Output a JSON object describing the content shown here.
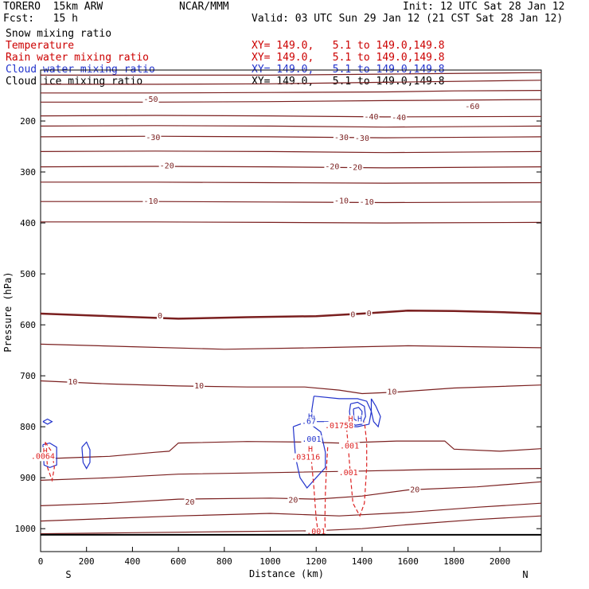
{
  "header": {
    "model": "TORERO  15km ARW",
    "center": "NCAR/MMM",
    "init": "Init: 12 UTC Sat 28 Jan 12",
    "fcst": "Fcst:   15 h",
    "valid": "Valid: 03 UTC Sun 29 Jan 12 (21 CST Sat 28 Jan 12)"
  },
  "fields": [
    {
      "name": "Snow mixing ratio",
      "xy": "",
      "color": "#000000"
    },
    {
      "name": "Temperature",
      "xy": "XY= 149.0,   5.1 to 149.0,149.8",
      "color": "#cc0000"
    },
    {
      "name": "Rain water mixing ratio",
      "xy": "XY= 149.0,   5.1 to 149.0,149.8",
      "color": "#cc0000"
    },
    {
      "name": "Cloud water mixing ratio",
      "xy": "XY= 149.0,   5.1 to 149.0,149.8",
      "color": "#2233cc"
    },
    {
      "name": "Cloud ice mixing ratio",
      "xy": "XY= 149.0,   5.1 to 149.0,149.8",
      "color": "#000000"
    }
  ],
  "chart_data": {
    "type": "line",
    "xlabel": "Distance (km)",
    "ylabel": "Pressure (hPa)",
    "xlim": [
      0,
      2180
    ],
    "ylim": [
      1045,
      100
    ],
    "x_ticks": [
      0,
      200,
      400,
      600,
      800,
      1000,
      1200,
      1400,
      1600,
      1800,
      2000
    ],
    "y_ticks": [
      200,
      300,
      400,
      500,
      600,
      700,
      800,
      900,
      1000
    ],
    "axis_end_labels": {
      "left": "S",
      "right": "N"
    },
    "colors": {
      "temperature": "#7a1f1f",
      "rain": "#dd2222",
      "cloud_water": "#2233cc",
      "label_temp": "#7a1f1f"
    },
    "temperature_isotherms": [
      {
        "level": -60,
        "pts": [
          [
            0,
            110
          ],
          [
            500,
            110
          ],
          [
            1000,
            110
          ],
          [
            1500,
            108
          ],
          [
            2180,
            105
          ]
        ]
      },
      {
        "level": -55,
        "pts": [
          [
            0,
            128
          ],
          [
            500,
            128
          ],
          [
            1000,
            127
          ],
          [
            1500,
            124
          ],
          [
            2180,
            120
          ]
        ]
      },
      {
        "level": -50,
        "pts": [
          [
            0,
            145
          ],
          [
            500,
            145
          ],
          [
            1000,
            144
          ],
          [
            1500,
            143
          ],
          [
            1800,
            141
          ],
          [
            2180,
            140
          ]
        ]
      },
      {
        "level": -45,
        "pts": [
          [
            0,
            163
          ],
          [
            500,
            163
          ],
          [
            1000,
            162
          ],
          [
            1500,
            160
          ],
          [
            2180,
            158
          ]
        ]
      },
      {
        "level": -40,
        "pts": [
          [
            0,
            190
          ],
          [
            500,
            189
          ],
          [
            1000,
            190
          ],
          [
            1500,
            192
          ],
          [
            2180,
            191
          ]
        ]
      },
      {
        "level": -35,
        "pts": [
          [
            0,
            210
          ],
          [
            500,
            209
          ],
          [
            1000,
            210
          ],
          [
            1500,
            212
          ],
          [
            2180,
            210
          ]
        ]
      },
      {
        "level": -30,
        "pts": [
          [
            0,
            231
          ],
          [
            500,
            230
          ],
          [
            1000,
            231
          ],
          [
            1500,
            233
          ],
          [
            2180,
            231
          ]
        ]
      },
      {
        "level": -25,
        "pts": [
          [
            0,
            260
          ],
          [
            500,
            259
          ],
          [
            1000,
            260
          ],
          [
            1500,
            262
          ],
          [
            2180,
            260
          ]
        ]
      },
      {
        "level": -20,
        "pts": [
          [
            0,
            290
          ],
          [
            500,
            289
          ],
          [
            1000,
            290
          ],
          [
            1500,
            292
          ],
          [
            2180,
            290
          ]
        ]
      },
      {
        "level": -15,
        "pts": [
          [
            0,
            320
          ],
          [
            500,
            320
          ],
          [
            1000,
            321
          ],
          [
            1500,
            322
          ],
          [
            2180,
            321
          ]
        ]
      },
      {
        "level": -10,
        "pts": [
          [
            0,
            358
          ],
          [
            500,
            358
          ],
          [
            1000,
            359
          ],
          [
            1500,
            360
          ],
          [
            2180,
            359
          ]
        ]
      },
      {
        "level": -5,
        "pts": [
          [
            0,
            398
          ],
          [
            500,
            398
          ],
          [
            1000,
            399
          ],
          [
            1500,
            400
          ],
          [
            2180,
            399
          ]
        ]
      },
      {
        "level": 0,
        "bold": true,
        "pts": [
          [
            0,
            578
          ],
          [
            300,
            583
          ],
          [
            600,
            588
          ],
          [
            900,
            585
          ],
          [
            1200,
            583
          ],
          [
            1400,
            578
          ],
          [
            1600,
            572
          ],
          [
            1800,
            573
          ],
          [
            2000,
            575
          ],
          [
            2180,
            578
          ]
        ]
      },
      {
        "level": 5,
        "pts": [
          [
            0,
            638
          ],
          [
            400,
            643
          ],
          [
            800,
            648
          ],
          [
            1200,
            645
          ],
          [
            1600,
            641
          ],
          [
            2180,
            645
          ]
        ]
      },
      {
        "level": 10,
        "pts": [
          [
            0,
            710
          ],
          [
            300,
            716
          ],
          [
            600,
            720
          ],
          [
            900,
            722
          ],
          [
            1150,
            722
          ],
          [
            1300,
            728
          ],
          [
            1400,
            735
          ],
          [
            1550,
            732
          ],
          [
            1800,
            724
          ],
          [
            2180,
            718
          ]
        ]
      },
      {
        "level": 15,
        "pts": [
          [
            0,
            863
          ],
          [
            300,
            858
          ],
          [
            500,
            850
          ],
          [
            560,
            848
          ],
          [
            600,
            832
          ],
          [
            900,
            829
          ],
          [
            1150,
            830
          ],
          [
            1300,
            832
          ],
          [
            1550,
            828
          ],
          [
            1760,
            828
          ],
          [
            1800,
            844
          ],
          [
            2000,
            848
          ],
          [
            2180,
            843
          ]
        ]
      },
      {
        "level": 17.5,
        "pts": [
          [
            0,
            905
          ],
          [
            300,
            900
          ],
          [
            600,
            893
          ],
          [
            1000,
            890
          ],
          [
            1400,
            887
          ],
          [
            1700,
            884
          ],
          [
            2180,
            882
          ]
        ]
      },
      {
        "level": 20,
        "pts": [
          [
            0,
            955
          ],
          [
            300,
            950
          ],
          [
            600,
            942
          ],
          [
            1000,
            940
          ],
          [
            1200,
            942
          ],
          [
            1400,
            936
          ],
          [
            1600,
            924
          ],
          [
            1900,
            918
          ],
          [
            2180,
            908
          ]
        ]
      },
      {
        "level": 22.5,
        "pts": [
          [
            0,
            985
          ],
          [
            300,
            980
          ],
          [
            600,
            975
          ],
          [
            1000,
            970
          ],
          [
            1300,
            975
          ],
          [
            1600,
            968
          ],
          [
            1900,
            958
          ],
          [
            2180,
            950
          ]
        ]
      },
      {
        "level": 25,
        "pts": [
          [
            0,
            1010
          ],
          [
            400,
            1008
          ],
          [
            800,
            1006
          ],
          [
            1200,
            1004
          ],
          [
            1400,
            1000
          ],
          [
            1600,
            992
          ],
          [
            1900,
            982
          ],
          [
            2180,
            975
          ]
        ]
      }
    ],
    "isotherm_labels": [
      {
        "x": 1880,
        "p": 172,
        "t": "-60"
      },
      {
        "x": 480,
        "p": 158,
        "t": "-50"
      },
      {
        "x": 1440,
        "p": 192,
        "t": "-40"
      },
      {
        "x": 1560,
        "p": 194,
        "t": "-40"
      },
      {
        "x": 490,
        "p": 233,
        "t": "-30"
      },
      {
        "x": 1310,
        "p": 233,
        "t": "-30"
      },
      {
        "x": 1400,
        "p": 234,
        "t": "-30"
      },
      {
        "x": 550,
        "p": 288,
        "t": "-20"
      },
      {
        "x": 1270,
        "p": 290,
        "t": "-20"
      },
      {
        "x": 1370,
        "p": 291,
        "t": "-20"
      },
      {
        "x": 480,
        "p": 358,
        "t": "-10"
      },
      {
        "x": 1310,
        "p": 357,
        "t": "-10"
      },
      {
        "x": 1420,
        "p": 359,
        "t": "-10"
      },
      {
        "x": 520,
        "p": 583,
        "t": "0"
      },
      {
        "x": 1360,
        "p": 580,
        "t": "0"
      },
      {
        "x": 1430,
        "p": 578,
        "t": "0"
      },
      {
        "x": 140,
        "p": 712,
        "t": "10"
      },
      {
        "x": 690,
        "p": 720,
        "t": "10"
      },
      {
        "x": 1530,
        "p": 732,
        "t": "10"
      },
      {
        "x": 650,
        "p": 948,
        "t": "20"
      },
      {
        "x": 1100,
        "p": 944,
        "t": "20"
      },
      {
        "x": 1630,
        "p": 924,
        "t": "20"
      }
    ],
    "ground_pressure": 1012,
    "rain_contours": [
      {
        "pts": [
          [
            20,
            830
          ],
          [
            50,
            850
          ],
          [
            60,
            880
          ],
          [
            50,
            905
          ],
          [
            30,
            880
          ],
          [
            25,
            850
          ],
          [
            20,
            830
          ]
        ]
      },
      {
        "pts": [
          [
            1170,
            840
          ],
          [
            1180,
            870
          ],
          [
            1190,
            920
          ],
          [
            1200,
            980
          ],
          [
            1210,
            1012
          ]
        ]
      },
      {
        "pts": [
          [
            1250,
            840
          ],
          [
            1245,
            880
          ],
          [
            1240,
            930
          ],
          [
            1238,
            980
          ],
          [
            1240,
            1012
          ]
        ]
      },
      {
        "pts": [
          [
            1330,
            790
          ],
          [
            1340,
            840
          ],
          [
            1350,
            900
          ],
          [
            1360,
            950
          ],
          [
            1390,
            975
          ],
          [
            1410,
            950
          ],
          [
            1420,
            880
          ],
          [
            1420,
            830
          ],
          [
            1410,
            790
          ]
        ]
      }
    ],
    "rain_labels": [
      {
        "x": 20,
        "p": 848,
        "t": "H"
      },
      {
        "x": 10,
        "p": 858,
        "t": ".0064"
      },
      {
        "x": 1175,
        "p": 844,
        "t": "H"
      },
      {
        "x": 1155,
        "p": 860,
        "t": ".03116"
      },
      {
        "x": 1345,
        "p": 838,
        "t": ".001"
      },
      {
        "x": 1340,
        "p": 890,
        "t": ".001"
      },
      {
        "x": 1350,
        "p": 785,
        "t": "H"
      },
      {
        "x": 1300,
        "p": 798,
        "t": ".01758"
      },
      {
        "x": 1200,
        "p": 1006,
        "t": ".001"
      }
    ],
    "cloud_contours": [
      {
        "pts": [
          [
            10,
            790
          ],
          [
            30,
            785
          ],
          [
            50,
            790
          ],
          [
            30,
            795
          ],
          [
            10,
            790
          ]
        ]
      },
      {
        "pts": [
          [
            10,
            835
          ],
          [
            40,
            832
          ],
          [
            70,
            840
          ],
          [
            70,
            875
          ],
          [
            40,
            880
          ],
          [
            15,
            875
          ],
          [
            10,
            835
          ]
        ]
      },
      {
        "pts": [
          [
            180,
            840
          ],
          [
            200,
            830
          ],
          [
            215,
            845
          ],
          [
            215,
            870
          ],
          [
            200,
            882
          ],
          [
            185,
            870
          ],
          [
            180,
            840
          ]
        ]
      },
      {
        "pts": [
          [
            1190,
            740
          ],
          [
            1300,
            745
          ],
          [
            1380,
            745
          ],
          [
            1420,
            750
          ],
          [
            1440,
            770
          ],
          [
            1430,
            795
          ],
          [
            1380,
            800
          ],
          [
            1330,
            800
          ],
          [
            1290,
            798
          ],
          [
            1250,
            790
          ],
          [
            1200,
            790
          ],
          [
            1180,
            770
          ],
          [
            1190,
            740
          ]
        ]
      },
      {
        "pts": [
          [
            1100,
            800
          ],
          [
            1160,
            790
          ],
          [
            1220,
            810
          ],
          [
            1240,
            850
          ],
          [
            1240,
            880
          ],
          [
            1200,
            900
          ],
          [
            1160,
            920
          ],
          [
            1130,
            900
          ],
          [
            1110,
            860
          ],
          [
            1100,
            800
          ]
        ]
      },
      {
        "pts": [
          [
            1350,
            755
          ],
          [
            1380,
            752
          ],
          [
            1410,
            760
          ],
          [
            1415,
            780
          ],
          [
            1400,
            795
          ],
          [
            1370,
            797
          ],
          [
            1350,
            790
          ],
          [
            1345,
            770
          ],
          [
            1350,
            755
          ]
        ]
      },
      {
        "pts": [
          [
            1362,
            765
          ],
          [
            1385,
            762
          ],
          [
            1400,
            770
          ],
          [
            1398,
            783
          ],
          [
            1380,
            789
          ],
          [
            1365,
            785
          ],
          [
            1362,
            765
          ]
        ]
      },
      {
        "pts": [
          [
            1440,
            745
          ],
          [
            1460,
            760
          ],
          [
            1480,
            780
          ],
          [
            1470,
            800
          ],
          [
            1450,
            790
          ],
          [
            1440,
            770
          ],
          [
            1440,
            745
          ]
        ]
      }
    ],
    "cloud_labels": [
      {
        "x": 1175,
        "p": 780,
        "t": "H"
      },
      {
        "x": 1168,
        "p": 790,
        "t": ".67"
      },
      {
        "x": 1390,
        "p": 785,
        "t": "H"
      },
      {
        "x": 1180,
        "p": 825,
        "t": ".001"
      }
    ]
  }
}
